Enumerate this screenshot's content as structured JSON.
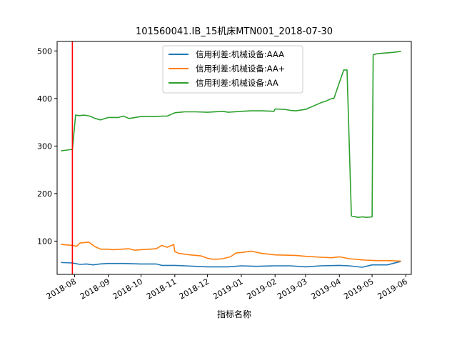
{
  "chart_data": {
    "type": "line",
    "title": "101560041.IB_15机床MTN001_2018-07-30",
    "xlabel": "指标名称",
    "ylabel": "",
    "x_axis_type": "date",
    "xlim": [
      "2018-07-16",
      "2019-06-06"
    ],
    "ylim": [
      30,
      520
    ],
    "x_ticks": [
      "2018-08-01",
      "2018-09-01",
      "2018-10-01",
      "2018-11-01",
      "2018-12-01",
      "2019-01-01",
      "2019-02-01",
      "2019-03-01",
      "2019-04-01",
      "2019-05-01",
      "2019-06-01"
    ],
    "x_tick_labels": [
      "2018-08",
      "2018-09",
      "2018-10",
      "2018-11",
      "2018-12",
      "2019-01",
      "2019-02",
      "2019-03",
      "2019-04",
      "2019-05",
      "2019-06"
    ],
    "y_ticks": [
      100,
      200,
      300,
      400,
      500
    ],
    "grid": false,
    "legend_position": "top-center",
    "vertical_marker": {
      "x": "2018-07-30",
      "color": "#ff0000"
    },
    "series": [
      {
        "name": "信用利差:机械设备:AAA",
        "color": "#1f77b4",
        "x": [
          "2018-07-20",
          "2018-07-30",
          "2018-08-06",
          "2018-08-12",
          "2018-08-18",
          "2018-08-24",
          "2018-09-01",
          "2018-09-15",
          "2018-10-01",
          "2018-10-15",
          "2018-10-20",
          "2018-11-01",
          "2018-11-10",
          "2018-12-01",
          "2018-12-20",
          "2019-01-01",
          "2019-01-15",
          "2019-02-01",
          "2019-02-15",
          "2019-03-01",
          "2019-03-15",
          "2019-04-01",
          "2019-04-10",
          "2019-04-22",
          "2019-05-01",
          "2019-05-15",
          "2019-05-27"
        ],
        "y": [
          55,
          54,
          51,
          52,
          50,
          52,
          53,
          53,
          52,
          52,
          49,
          49,
          48,
          46,
          46,
          48,
          47,
          48,
          48,
          46,
          48,
          49,
          48,
          45,
          50,
          50,
          57
        ]
      },
      {
        "name": "信用利差:机械设备:AA+",
        "color": "#ff7f0e",
        "x": [
          "2018-07-20",
          "2018-07-30",
          "2018-08-03",
          "2018-08-06",
          "2018-08-14",
          "2018-08-20",
          "2018-08-25",
          "2018-09-01",
          "2018-09-05",
          "2018-09-20",
          "2018-09-25",
          "2018-10-15",
          "2018-10-20",
          "2018-10-25",
          "2018-10-31",
          "2018-11-01",
          "2018-11-05",
          "2018-11-15",
          "2018-11-25",
          "2018-12-01",
          "2018-12-05",
          "2018-12-10",
          "2018-12-15",
          "2018-12-22",
          "2018-12-27",
          "2019-01-01",
          "2019-01-10",
          "2019-01-20",
          "2019-02-01",
          "2019-02-20",
          "2019-03-01",
          "2019-03-15",
          "2019-03-25",
          "2019-04-01",
          "2019-04-10",
          "2019-04-20",
          "2019-04-25",
          "2019-05-05",
          "2019-05-15",
          "2019-05-27"
        ],
        "y": [
          93,
          91,
          89,
          96,
          98,
          88,
          83,
          83,
          82,
          84,
          81,
          84,
          91,
          87,
          93,
          78,
          74,
          71,
          69,
          64,
          62,
          62,
          63,
          67,
          75,
          76,
          79,
          74,
          71,
          70,
          68,
          66,
          65,
          67,
          63,
          61,
          60,
          59,
          59,
          58
        ]
      },
      {
        "name": "信用利差:机械设备:AA",
        "color": "#2ca02c",
        "x": [
          "2018-07-20",
          "2018-07-30",
          "2018-08-02",
          "2018-08-05",
          "2018-08-10",
          "2018-08-15",
          "2018-08-20",
          "2018-08-25",
          "2018-09-01",
          "2018-09-10",
          "2018-09-15",
          "2018-09-20",
          "2018-10-01",
          "2018-10-15",
          "2018-10-20",
          "2018-10-25",
          "2018-11-01",
          "2018-11-10",
          "2018-11-20",
          "2018-12-01",
          "2018-12-15",
          "2018-12-20",
          "2019-01-01",
          "2019-01-10",
          "2019-01-20",
          "2019-01-31",
          "2019-02-01",
          "2019-02-10",
          "2019-02-15",
          "2019-02-20",
          "2019-03-01",
          "2019-03-15",
          "2019-03-20",
          "2019-03-25",
          "2019-03-27",
          "2019-04-05",
          "2019-04-08",
          "2019-04-12",
          "2019-04-18",
          "2019-04-22",
          "2019-04-26",
          "2019-05-01",
          "2019-05-02",
          "2019-05-05",
          "2019-05-10",
          "2019-05-20",
          "2019-05-27"
        ],
        "y": [
          290,
          293,
          365,
          364,
          365,
          363,
          358,
          355,
          360,
          360,
          363,
          358,
          362,
          362,
          363,
          363,
          370,
          372,
          372,
          371,
          373,
          371,
          373,
          374,
          374,
          373,
          378,
          377,
          375,
          374,
          377,
          391,
          395,
          400,
          400,
          460,
          460,
          153,
          150,
          151,
          150,
          151,
          492,
          494,
          495,
          497,
          499
        ]
      }
    ]
  }
}
